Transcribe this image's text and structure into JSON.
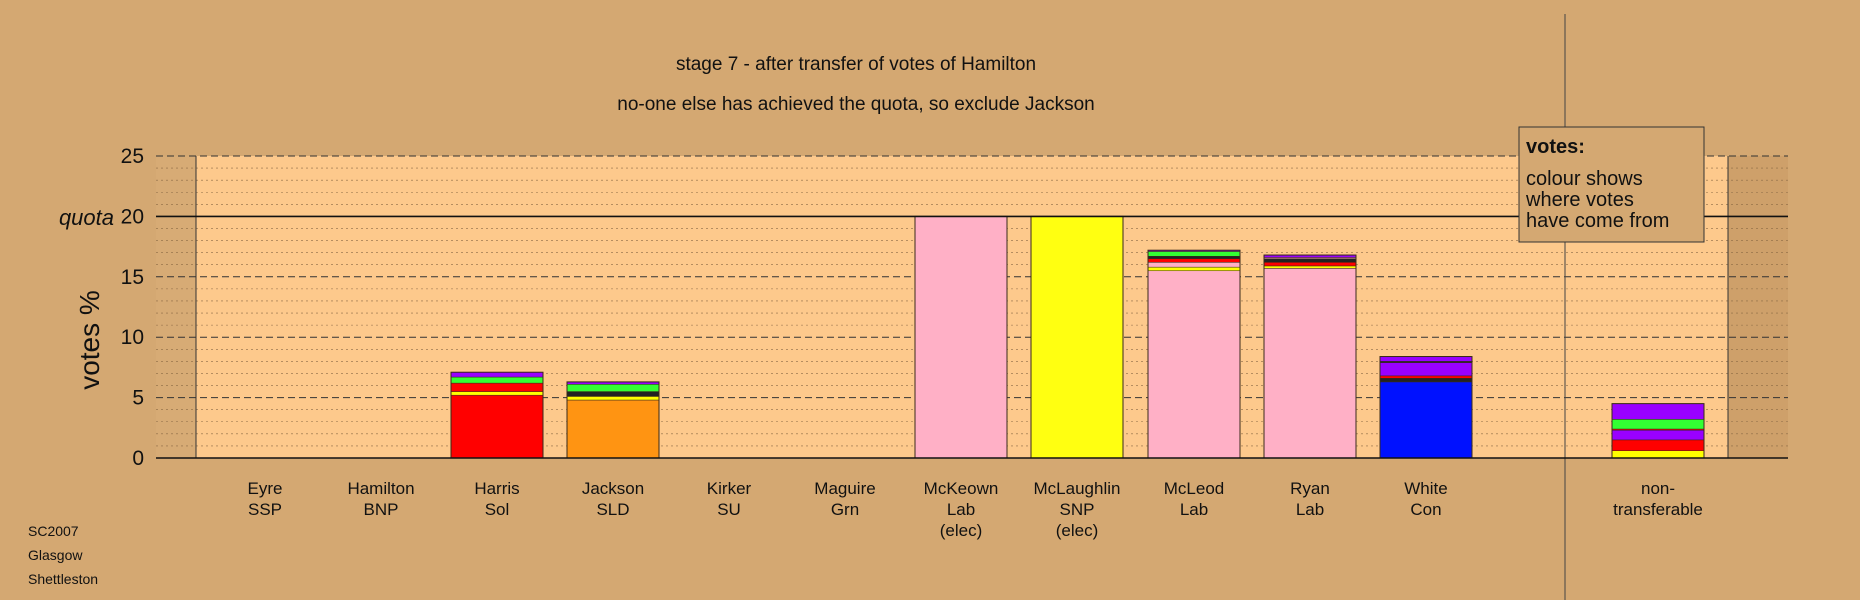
{
  "chart_data": {
    "type": "bar",
    "title": "stage 7 - after transfer of votes of Hamilton",
    "subtitle": "no-one else has achieved the quota, so exclude Jackson",
    "ylabel": "votes %",
    "ylim": [
      0,
      25
    ],
    "yticks": [
      0,
      5,
      10,
      15,
      20,
      25
    ],
    "quota_label": "quota",
    "quota": 20,
    "candidates": [
      {
        "lines": [
          "Eyre",
          "SSP"
        ],
        "segments": []
      },
      {
        "lines": [
          "Hamilton",
          "BNP"
        ],
        "segments": []
      },
      {
        "lines": [
          "Harris",
          "Sol"
        ],
        "segments": [
          {
            "color": "#ff0000",
            "value": 5.2
          },
          {
            "color": "#ffff00",
            "value": 0.3
          },
          {
            "color": "#ff0000",
            "value": 0.7
          },
          {
            "color": "#33ff33",
            "value": 0.5
          },
          {
            "color": "#9900ff",
            "value": 0.4
          }
        ]
      },
      {
        "lines": [
          "Jackson",
          "SLD"
        ],
        "segments": [
          {
            "color": "#ff9412",
            "value": 4.8
          },
          {
            "color": "#ffff00",
            "value": 0.3
          },
          {
            "color": "#222222",
            "value": 0.4
          },
          {
            "color": "#33ff33",
            "value": 0.6
          },
          {
            "color": "#9900ff",
            "value": 0.2
          }
        ]
      },
      {
        "lines": [
          "Kirker",
          "SU"
        ],
        "segments": []
      },
      {
        "lines": [
          "Maguire",
          "Grn"
        ],
        "segments": []
      },
      {
        "lines": [
          "McKeown",
          "Lab",
          "(elec)"
        ],
        "segments": [
          {
            "color": "#ffb0c6",
            "value": 20
          }
        ]
      },
      {
        "lines": [
          "McLaughlin",
          "SNP",
          "(elec)"
        ],
        "segments": [
          {
            "color": "#ffff11",
            "value": 20
          }
        ]
      },
      {
        "lines": [
          "McLeod",
          "Lab"
        ],
        "segments": [
          {
            "color": "#ffb0c6",
            "value": 15.5
          },
          {
            "color": "#ffff00",
            "value": 0.3
          },
          {
            "color": "#ffb0c6",
            "value": 0.4
          },
          {
            "color": "#ff0000",
            "value": 0.3
          },
          {
            "color": "#222222",
            "value": 0.2
          },
          {
            "color": "#33ff33",
            "value": 0.4
          },
          {
            "color": "#9900ff",
            "value": 0.1
          }
        ]
      },
      {
        "lines": [
          "Ryan",
          "Lab"
        ],
        "segments": [
          {
            "color": "#ffb0c6",
            "value": 15.7
          },
          {
            "color": "#ffff00",
            "value": 0.2
          },
          {
            "color": "#ff0000",
            "value": 0.3
          },
          {
            "color": "#222222",
            "value": 0.3
          },
          {
            "color": "#ffb0c6",
            "value": 0.1
          },
          {
            "color": "#9900ff",
            "value": 0.2
          }
        ]
      },
      {
        "lines": [
          "White",
          "Con"
        ],
        "segments": [
          {
            "color": "#0011ff",
            "value": 6.3
          },
          {
            "color": "#222222",
            "value": 0.3
          },
          {
            "color": "#ff0000",
            "value": 0.2
          },
          {
            "color": "#9900ff",
            "value": 1.1
          },
          {
            "color": "#222222",
            "value": 0.1
          },
          {
            "color": "#9900ff",
            "value": 0.4
          }
        ]
      },
      {
        "lines": [
          "non-",
          "transferable"
        ],
        "segments": [
          {
            "color": "#ffff00",
            "value": 0.6
          },
          {
            "color": "#ff0000",
            "value": 0.9
          },
          {
            "color": "#9900ff",
            "value": 0.8
          },
          {
            "color": "#ff0000",
            "value": 0.1
          },
          {
            "color": "#33ff33",
            "value": 0.8
          },
          {
            "color": "#9900ff",
            "value": 1.3
          }
        ]
      }
    ],
    "legend": {
      "title": "votes:",
      "lines": [
        "colour shows",
        "where votes",
        "have come from"
      ],
      "placement": "top-right"
    },
    "grid": true
  },
  "footer": {
    "lines": [
      "SC2007",
      "Glasgow",
      "Shettleston"
    ]
  },
  "colors": {
    "background": "#d4a872",
    "plot_area": "#fdc98c",
    "outside_plot": "#d7ab75",
    "right_band": "#cea06a"
  }
}
